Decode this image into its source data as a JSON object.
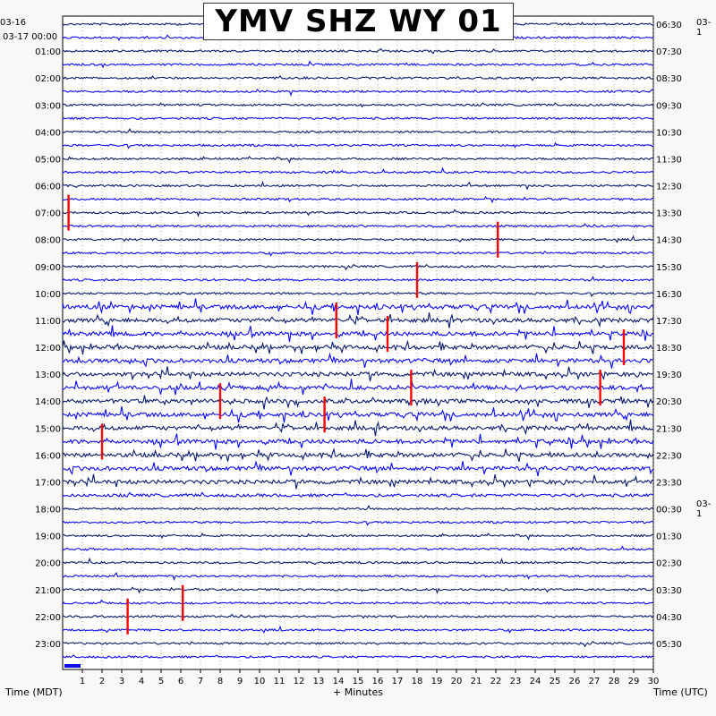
{
  "chart_data": {
    "type": "helicorder",
    "title": "YMV SHZ WY 01",
    "left_date_labels": [
      "03-16",
      "03-17 00:00"
    ],
    "left_time_labels": [
      "00:00",
      "01:00",
      "02:00",
      "03:00",
      "04:00",
      "05:00",
      "06:00",
      "07:00",
      "08:00",
      "09:00",
      "10:00",
      "11:00",
      "12:00",
      "13:00",
      "14:00",
      "15:00",
      "16:00",
      "17:00",
      "18:00",
      "19:00",
      "20:00",
      "21:00",
      "22:00",
      "23:00"
    ],
    "right_date_labels": [
      "03-1",
      "03-1"
    ],
    "right_time_labels": [
      "06:30",
      "07:30",
      "08:30",
      "09:30",
      "10:30",
      "11:30",
      "12:30",
      "13:30",
      "14:30",
      "15:30",
      "16:30",
      "17:30",
      "18:30",
      "19:30",
      "20:30",
      "21:30",
      "22:30",
      "23:30",
      "00:30",
      "01:30",
      "02:30",
      "03:30",
      "04:30",
      "05:30"
    ],
    "x_ticks": [
      1,
      2,
      3,
      4,
      5,
      6,
      7,
      8,
      9,
      10,
      11,
      12,
      13,
      14,
      15,
      16,
      17,
      18,
      19,
      20,
      21,
      22,
      23,
      24,
      25,
      26,
      27,
      28,
      29,
      30
    ],
    "xlim": [
      0,
      30
    ],
    "xlabel": "+ Minutes",
    "left_axis_label": "Time (MDT)",
    "right_axis_label": "Time (UTC)",
    "trace_colors": [
      "#0a1a6e",
      "#0c0cf0",
      "#0a1a6e",
      "#0c0cf0"
    ],
    "event_color": "#ff0000",
    "activity_windows": [
      {
        "from_hour": 10.5,
        "to_hour": 17.5,
        "level": "high"
      },
      {
        "from_hour": 17.5,
        "to_hour": 18.0,
        "level": "moderate"
      },
      {
        "from_hour": 0.0,
        "to_hour": 10.5,
        "level": "low"
      },
      {
        "from_hour": 18.0,
        "to_hour": 24.0,
        "level": "low"
      }
    ],
    "red_events": [
      {
        "hour": 7.0,
        "minute": 0.3
      },
      {
        "hour": 9.5,
        "minute": 18.0
      },
      {
        "hour": 8.0,
        "minute": 22.1
      },
      {
        "hour": 11.0,
        "minute": 13.9
      },
      {
        "hour": 11.5,
        "minute": 16.5
      },
      {
        "hour": 12.0,
        "minute": 28.5
      },
      {
        "hour": 14.0,
        "minute": 8.0
      },
      {
        "hour": 13.5,
        "minute": 17.7
      },
      {
        "hour": 14.5,
        "minute": 13.3
      },
      {
        "hour": 13.5,
        "minute": 27.3
      },
      {
        "hour": 15.5,
        "minute": 2.0
      },
      {
        "hour": 22.0,
        "minute": 3.3
      },
      {
        "hour": 21.5,
        "minute": 6.1
      }
    ]
  }
}
